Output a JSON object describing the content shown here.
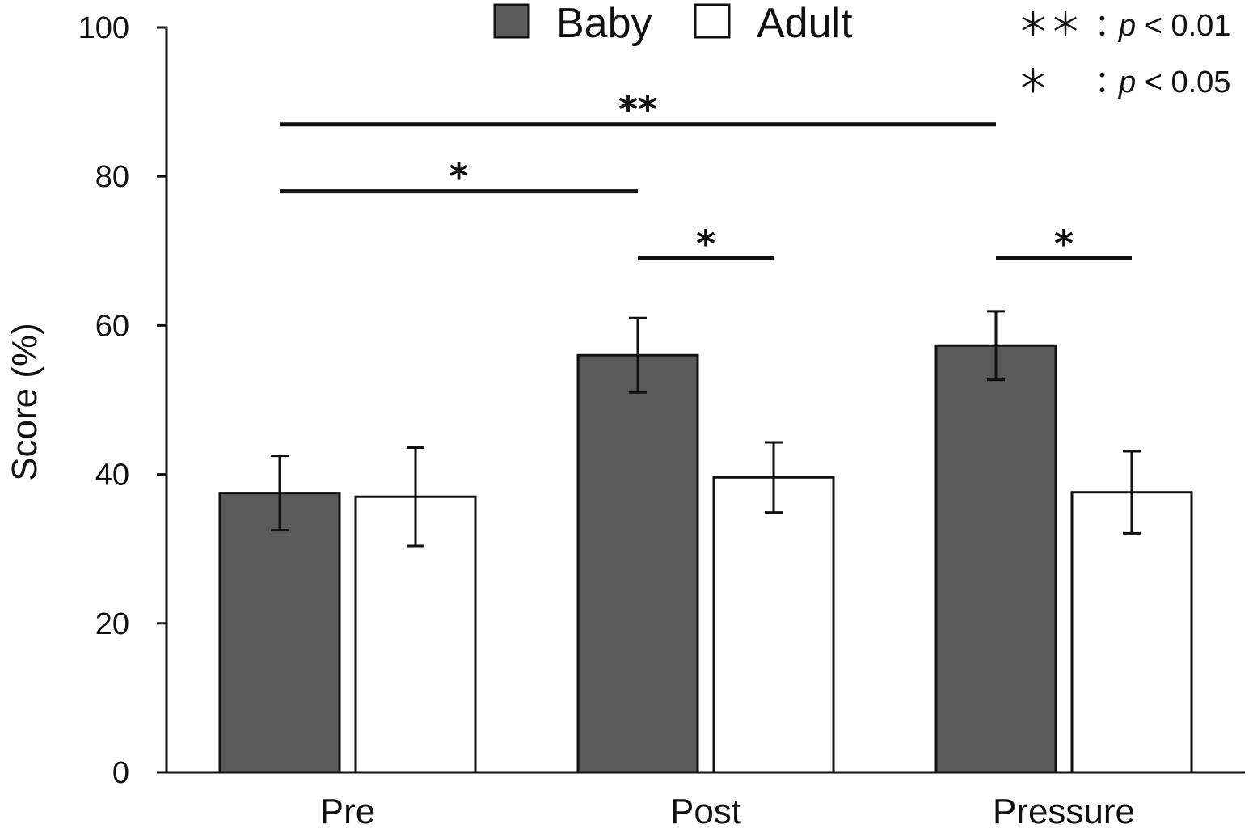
{
  "chart_data": {
    "type": "bar",
    "title": "",
    "xlabel": "",
    "ylabel": "Score (%)",
    "ylim": [
      0,
      100
    ],
    "yticks": [
      0,
      20,
      40,
      60,
      80,
      100
    ],
    "categories": [
      "Pre",
      "Post",
      "Pressure"
    ],
    "series": [
      {
        "name": "Baby",
        "color": "#5a5a5a",
        "values": [
          37.5,
          56.0,
          57.3
        ],
        "errors": [
          5.0,
          5.0,
          4.6
        ]
      },
      {
        "name": "Adult",
        "color": "#ffffff",
        "values": [
          37.0,
          39.6,
          37.6
        ],
        "errors": [
          6.6,
          4.7,
          5.5
        ]
      }
    ],
    "significance": [
      {
        "from": {
          "category": "Pre",
          "series": "Baby"
        },
        "to": {
          "category": "Pressure",
          "series": "Baby"
        },
        "level": 87,
        "label": "**"
      },
      {
        "from": {
          "category": "Pre",
          "series": "Baby"
        },
        "to": {
          "category": "Post",
          "series": "Baby"
        },
        "level": 78,
        "label": "*"
      },
      {
        "from": {
          "category": "Post",
          "series": "Baby"
        },
        "to": {
          "category": "Post",
          "series": "Adult"
        },
        "level": 69,
        "label": "*"
      },
      {
        "from": {
          "category": "Pressure",
          "series": "Baby"
        },
        "to": {
          "category": "Pressure",
          "series": "Adult"
        },
        "level": 69,
        "label": "*"
      }
    ],
    "legend": {
      "position": "top-center",
      "entries": [
        "Baby",
        "Adult"
      ]
    },
    "notes": [
      {
        "stars": "＊＊",
        "sep": "：",
        "p": "p",
        "rest": " < 0.01"
      },
      {
        "stars": "＊",
        "sep": "：",
        "p": "p",
        "rest": " < 0.05"
      }
    ],
    "grid": false
  }
}
